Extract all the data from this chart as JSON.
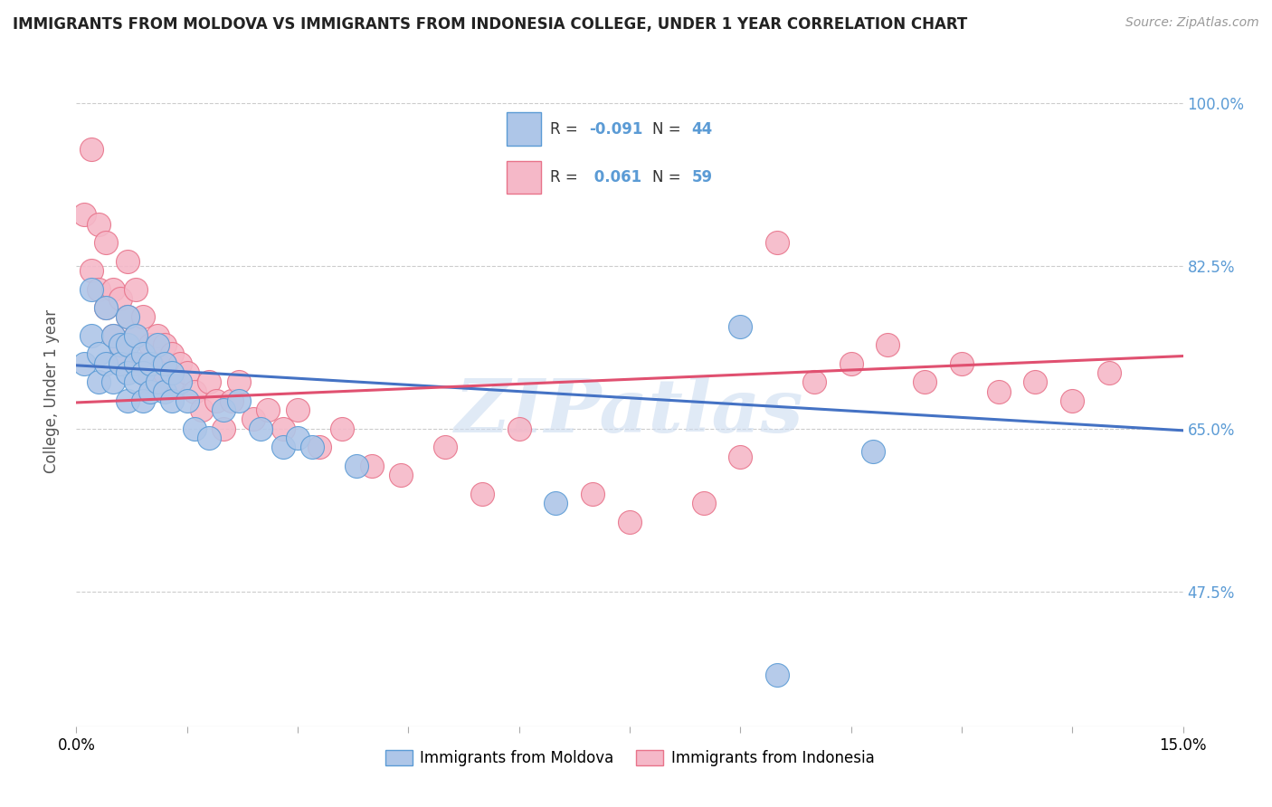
{
  "title": "IMMIGRANTS FROM MOLDOVA VS IMMIGRANTS FROM INDONESIA COLLEGE, UNDER 1 YEAR CORRELATION CHART",
  "source": "Source: ZipAtlas.com",
  "ylabel": "College, Under 1 year",
  "xlim": [
    0.0,
    0.15
  ],
  "ylim": [
    0.33,
    1.05
  ],
  "ytick_vals": [
    0.475,
    0.65,
    0.825,
    1.0
  ],
  "ytick_labels": [
    "47.5%",
    "65.0%",
    "82.5%",
    "100.0%"
  ],
  "xtick_vals": [
    0.0,
    0.015,
    0.03,
    0.045,
    0.06,
    0.075,
    0.09,
    0.105,
    0.12,
    0.135,
    0.15
  ],
  "watermark": "ZIPatlas",
  "blue_fill": "#aec6e8",
  "pink_fill": "#f5b8c8",
  "blue_edge": "#5b9bd5",
  "pink_edge": "#e8738a",
  "blue_line": "#4472c4",
  "pink_line": "#e05070",
  "moldova_x": [
    0.001,
    0.002,
    0.002,
    0.003,
    0.003,
    0.004,
    0.004,
    0.005,
    0.005,
    0.006,
    0.006,
    0.007,
    0.007,
    0.007,
    0.007,
    0.008,
    0.008,
    0.008,
    0.009,
    0.009,
    0.009,
    0.01,
    0.01,
    0.011,
    0.011,
    0.012,
    0.012,
    0.013,
    0.013,
    0.014,
    0.015,
    0.016,
    0.018,
    0.02,
    0.022,
    0.025,
    0.028,
    0.03,
    0.032,
    0.038,
    0.065,
    0.09,
    0.095,
    0.108
  ],
  "moldova_y": [
    0.72,
    0.8,
    0.75,
    0.73,
    0.7,
    0.78,
    0.72,
    0.75,
    0.7,
    0.74,
    0.72,
    0.77,
    0.74,
    0.71,
    0.68,
    0.75,
    0.72,
    0.7,
    0.73,
    0.71,
    0.68,
    0.72,
    0.69,
    0.74,
    0.7,
    0.72,
    0.69,
    0.71,
    0.68,
    0.7,
    0.68,
    0.65,
    0.64,
    0.67,
    0.68,
    0.65,
    0.63,
    0.64,
    0.63,
    0.61,
    0.57,
    0.76,
    0.385,
    0.625
  ],
  "indonesia_x": [
    0.001,
    0.002,
    0.002,
    0.003,
    0.003,
    0.004,
    0.004,
    0.005,
    0.005,
    0.006,
    0.006,
    0.007,
    0.007,
    0.008,
    0.008,
    0.009,
    0.009,
    0.01,
    0.01,
    0.011,
    0.011,
    0.012,
    0.012,
    0.013,
    0.013,
    0.014,
    0.015,
    0.016,
    0.017,
    0.018,
    0.019,
    0.02,
    0.021,
    0.022,
    0.024,
    0.026,
    0.028,
    0.03,
    0.033,
    0.036,
    0.04,
    0.044,
    0.05,
    0.055,
    0.06,
    0.07,
    0.075,
    0.085,
    0.09,
    0.095,
    0.1,
    0.105,
    0.11,
    0.115,
    0.12,
    0.125,
    0.13,
    0.135,
    0.14
  ],
  "indonesia_y": [
    0.88,
    0.95,
    0.82,
    0.87,
    0.8,
    0.85,
    0.78,
    0.8,
    0.75,
    0.79,
    0.73,
    0.77,
    0.83,
    0.8,
    0.75,
    0.77,
    0.72,
    0.74,
    0.7,
    0.75,
    0.72,
    0.74,
    0.71,
    0.73,
    0.7,
    0.72,
    0.71,
    0.69,
    0.67,
    0.7,
    0.68,
    0.65,
    0.68,
    0.7,
    0.66,
    0.67,
    0.65,
    0.67,
    0.63,
    0.65,
    0.61,
    0.6,
    0.63,
    0.58,
    0.65,
    0.58,
    0.55,
    0.57,
    0.62,
    0.85,
    0.7,
    0.72,
    0.74,
    0.7,
    0.72,
    0.69,
    0.7,
    0.68,
    0.71
  ],
  "blue_trend_x0": 0.0,
  "blue_trend_y0": 0.718,
  "blue_trend_x1": 0.15,
  "blue_trend_y1": 0.648,
  "pink_trend_x0": 0.0,
  "pink_trend_y0": 0.678,
  "pink_trend_x1": 0.15,
  "pink_trend_y1": 0.728
}
